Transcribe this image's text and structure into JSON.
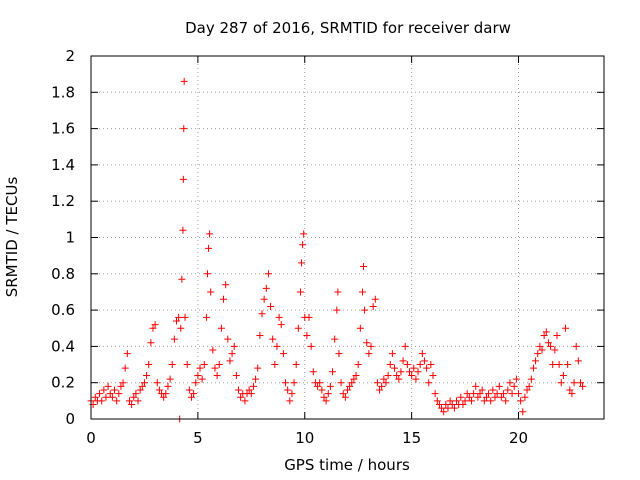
{
  "chart_data": {
    "type": "scatter",
    "title": "Day 287 of 2016, SRMTID for receiver darw",
    "xlabel": "GPS time / hours",
    "ylabel": "SRMTID / TECUs",
    "xlim": [
      0,
      24
    ],
    "ylim": [
      0,
      2
    ],
    "xticks": [
      0,
      5,
      10,
      15,
      20
    ],
    "yticks": [
      0,
      0.2,
      0.4,
      0.6,
      0.8,
      1,
      1.2,
      1.4,
      1.6,
      1.8,
      2
    ],
    "grid": true,
    "marker": "+",
    "color": "#ff0000",
    "series": [
      {
        "points": [
          [
            0.0,
            0.1
          ],
          [
            0.1,
            0.08
          ],
          [
            0.2,
            0.12
          ],
          [
            0.3,
            0.1
          ],
          [
            0.4,
            0.14
          ],
          [
            0.5,
            0.1
          ],
          [
            0.6,
            0.16
          ],
          [
            0.7,
            0.12
          ],
          [
            0.8,
            0.18
          ],
          [
            0.9,
            0.14
          ],
          [
            1.0,
            0.12
          ],
          [
            1.1,
            0.16
          ],
          [
            1.2,
            0.1
          ],
          [
            1.3,
            0.14
          ],
          [
            1.4,
            0.18
          ],
          [
            1.5,
            0.2
          ],
          [
            1.6,
            0.28
          ],
          [
            1.7,
            0.36
          ],
          [
            1.8,
            0.1
          ],
          [
            1.9,
            0.08
          ],
          [
            2.0,
            0.12
          ],
          [
            2.1,
            0.14
          ],
          [
            2.2,
            0.1
          ],
          [
            2.3,
            0.16
          ],
          [
            2.4,
            0.18
          ],
          [
            2.5,
            0.2
          ],
          [
            2.6,
            0.24
          ],
          [
            2.7,
            0.3
          ],
          [
            2.8,
            0.42
          ],
          [
            2.9,
            0.5
          ],
          [
            3.0,
            0.52
          ],
          [
            3.1,
            0.2
          ],
          [
            3.2,
            0.16
          ],
          [
            3.3,
            0.14
          ],
          [
            3.4,
            0.12
          ],
          [
            3.5,
            0.14
          ],
          [
            3.6,
            0.18
          ],
          [
            3.7,
            0.22
          ],
          [
            3.8,
            0.3
          ],
          [
            3.9,
            0.44
          ],
          [
            4.0,
            0.54
          ],
          [
            4.1,
            0.56
          ],
          [
            4.15,
            0.0
          ],
          [
            4.2,
            0.5
          ],
          [
            4.25,
            0.77
          ],
          [
            4.3,
            1.04
          ],
          [
            4.32,
            1.32
          ],
          [
            4.34,
            1.6
          ],
          [
            4.36,
            1.86
          ],
          [
            4.4,
            0.56
          ],
          [
            4.5,
            0.3
          ],
          [
            4.6,
            0.16
          ],
          [
            4.7,
            0.12
          ],
          [
            4.8,
            0.14
          ],
          [
            4.9,
            0.2
          ],
          [
            5.0,
            0.24
          ],
          [
            5.1,
            0.28
          ],
          [
            5.2,
            0.22
          ],
          [
            5.3,
            0.3
          ],
          [
            5.4,
            0.56
          ],
          [
            5.45,
            0.8
          ],
          [
            5.5,
            0.94
          ],
          [
            5.55,
            1.02
          ],
          [
            5.6,
            0.7
          ],
          [
            5.7,
            0.38
          ],
          [
            5.8,
            0.28
          ],
          [
            5.9,
            0.24
          ],
          [
            6.0,
            0.3
          ],
          [
            6.1,
            0.5
          ],
          [
            6.2,
            0.66
          ],
          [
            6.3,
            0.74
          ],
          [
            6.4,
            0.44
          ],
          [
            6.5,
            0.32
          ],
          [
            6.6,
            0.36
          ],
          [
            6.7,
            0.4
          ],
          [
            6.8,
            0.24
          ],
          [
            6.9,
            0.16
          ],
          [
            7.0,
            0.12
          ],
          [
            7.1,
            0.14
          ],
          [
            7.2,
            0.1
          ],
          [
            7.3,
            0.14
          ],
          [
            7.4,
            0.16
          ],
          [
            7.5,
            0.14
          ],
          [
            7.6,
            0.18
          ],
          [
            7.7,
            0.22
          ],
          [
            7.8,
            0.28
          ],
          [
            7.9,
            0.46
          ],
          [
            8.0,
            0.58
          ],
          [
            8.1,
            0.66
          ],
          [
            8.2,
            0.72
          ],
          [
            8.3,
            0.8
          ],
          [
            8.4,
            0.62
          ],
          [
            8.5,
            0.44
          ],
          [
            8.6,
            0.3
          ],
          [
            8.7,
            0.4
          ],
          [
            8.8,
            0.56
          ],
          [
            8.9,
            0.52
          ],
          [
            9.0,
            0.36
          ],
          [
            9.1,
            0.2
          ],
          [
            9.2,
            0.16
          ],
          [
            9.3,
            0.1
          ],
          [
            9.4,
            0.14
          ],
          [
            9.5,
            0.2
          ],
          [
            9.6,
            0.3
          ],
          [
            9.7,
            0.5
          ],
          [
            9.8,
            0.7
          ],
          [
            9.85,
            0.86
          ],
          [
            9.9,
            0.96
          ],
          [
            9.95,
            1.02
          ],
          [
            10.0,
            0.56
          ],
          [
            10.1,
            0.46
          ],
          [
            10.2,
            0.56
          ],
          [
            10.3,
            0.4
          ],
          [
            10.4,
            0.26
          ],
          [
            10.5,
            0.2
          ],
          [
            10.6,
            0.18
          ],
          [
            10.7,
            0.2
          ],
          [
            10.8,
            0.16
          ],
          [
            10.9,
            0.12
          ],
          [
            11.0,
            0.1
          ],
          [
            11.1,
            0.14
          ],
          [
            11.2,
            0.18
          ],
          [
            11.3,
            0.26
          ],
          [
            11.4,
            0.44
          ],
          [
            11.5,
            0.6
          ],
          [
            11.55,
            0.7
          ],
          [
            11.6,
            0.36
          ],
          [
            11.7,
            0.2
          ],
          [
            11.8,
            0.14
          ],
          [
            11.9,
            0.12
          ],
          [
            12.0,
            0.16
          ],
          [
            12.1,
            0.18
          ],
          [
            12.2,
            0.2
          ],
          [
            12.3,
            0.22
          ],
          [
            12.4,
            0.24
          ],
          [
            12.5,
            0.3
          ],
          [
            12.6,
            0.5
          ],
          [
            12.7,
            0.7
          ],
          [
            12.75,
            0.84
          ],
          [
            12.8,
            0.6
          ],
          [
            12.9,
            0.42
          ],
          [
            13.0,
            0.36
          ],
          [
            13.1,
            0.4
          ],
          [
            13.2,
            0.62
          ],
          [
            13.3,
            0.66
          ],
          [
            13.4,
            0.2
          ],
          [
            13.5,
            0.16
          ],
          [
            13.6,
            0.18
          ],
          [
            13.7,
            0.22
          ],
          [
            13.8,
            0.2
          ],
          [
            13.9,
            0.24
          ],
          [
            14.0,
            0.3
          ],
          [
            14.1,
            0.36
          ],
          [
            14.2,
            0.28
          ],
          [
            14.3,
            0.24
          ],
          [
            14.4,
            0.22
          ],
          [
            14.5,
            0.26
          ],
          [
            14.6,
            0.32
          ],
          [
            14.7,
            0.4
          ],
          [
            14.8,
            0.3
          ],
          [
            14.9,
            0.26
          ],
          [
            15.0,
            0.24
          ],
          [
            15.1,
            0.28
          ],
          [
            15.2,
            0.22
          ],
          [
            15.3,
            0.26
          ],
          [
            15.4,
            0.3
          ],
          [
            15.5,
            0.36
          ],
          [
            15.6,
            0.32
          ],
          [
            15.7,
            0.28
          ],
          [
            15.8,
            0.2
          ],
          [
            15.9,
            0.3
          ],
          [
            16.0,
            0.24
          ],
          [
            16.1,
            0.14
          ],
          [
            16.2,
            0.1
          ],
          [
            16.3,
            0.08
          ],
          [
            16.4,
            0.06
          ],
          [
            16.5,
            0.04
          ],
          [
            16.6,
            0.08
          ],
          [
            16.7,
            0.06
          ],
          [
            16.8,
            0.1
          ],
          [
            16.9,
            0.08
          ],
          [
            17.0,
            0.06
          ],
          [
            17.1,
            0.1
          ],
          [
            17.2,
            0.08
          ],
          [
            17.3,
            0.12
          ],
          [
            17.4,
            0.08
          ],
          [
            17.5,
            0.1
          ],
          [
            17.6,
            0.14
          ],
          [
            17.7,
            0.12
          ],
          [
            17.8,
            0.1
          ],
          [
            17.9,
            0.14
          ],
          [
            18.0,
            0.18
          ],
          [
            18.1,
            0.12
          ],
          [
            18.2,
            0.14
          ],
          [
            18.3,
            0.16
          ],
          [
            18.4,
            0.1
          ],
          [
            18.5,
            0.12
          ],
          [
            18.6,
            0.14
          ],
          [
            18.7,
            0.1
          ],
          [
            18.8,
            0.16
          ],
          [
            18.9,
            0.12
          ],
          [
            19.0,
            0.14
          ],
          [
            19.1,
            0.18
          ],
          [
            19.2,
            0.12
          ],
          [
            19.3,
            0.14
          ],
          [
            19.4,
            0.1
          ],
          [
            19.5,
            0.16
          ],
          [
            19.6,
            0.2
          ],
          [
            19.7,
            0.14
          ],
          [
            19.8,
            0.18
          ],
          [
            19.9,
            0.22
          ],
          [
            20.0,
            0.14
          ],
          [
            20.1,
            0.1
          ],
          [
            20.2,
            0.04
          ],
          [
            20.3,
            0.12
          ],
          [
            20.4,
            0.16
          ],
          [
            20.5,
            0.18
          ],
          [
            20.6,
            0.22
          ],
          [
            20.7,
            0.28
          ],
          [
            20.8,
            0.32
          ],
          [
            20.9,
            0.36
          ],
          [
            21.0,
            0.4
          ],
          [
            21.1,
            0.38
          ],
          [
            21.2,
            0.46
          ],
          [
            21.3,
            0.48
          ],
          [
            21.4,
            0.42
          ],
          [
            21.5,
            0.4
          ],
          [
            21.6,
            0.3
          ],
          [
            21.7,
            0.38
          ],
          [
            21.8,
            0.46
          ],
          [
            21.9,
            0.3
          ],
          [
            22.0,
            0.2
          ],
          [
            22.1,
            0.24
          ],
          [
            22.2,
            0.5
          ],
          [
            22.3,
            0.3
          ],
          [
            22.4,
            0.16
          ],
          [
            22.5,
            0.14
          ],
          [
            22.6,
            0.2
          ],
          [
            22.7,
            0.4
          ],
          [
            22.8,
            0.32
          ],
          [
            22.9,
            0.2
          ],
          [
            23.0,
            0.18
          ]
        ]
      }
    ]
  }
}
